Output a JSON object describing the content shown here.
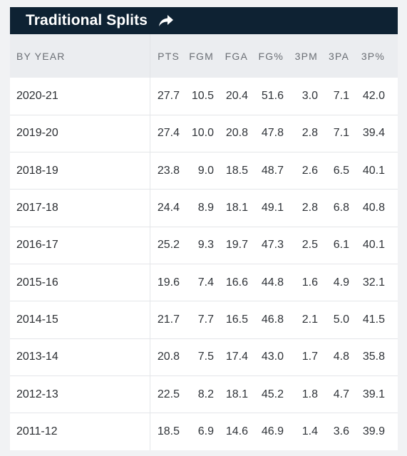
{
  "panel": {
    "title": "Traditional Splits",
    "share_icon": "share-arrow-icon"
  },
  "table": {
    "columns": [
      "BY YEAR",
      "PTS",
      "FGM",
      "FGA",
      "FG%",
      "3PM",
      "3PA",
      "3P%"
    ],
    "rows": [
      [
        "2020-21",
        "27.7",
        "10.5",
        "20.4",
        "51.6",
        "3.0",
        "7.1",
        "42.0"
      ],
      [
        "2019-20",
        "27.4",
        "10.0",
        "20.8",
        "47.8",
        "2.8",
        "7.1",
        "39.4"
      ],
      [
        "2018-19",
        "23.8",
        "9.0",
        "18.5",
        "48.7",
        "2.6",
        "6.5",
        "40.1"
      ],
      [
        "2017-18",
        "24.4",
        "8.9",
        "18.1",
        "49.1",
        "2.8",
        "6.8",
        "40.8"
      ],
      [
        "2016-17",
        "25.2",
        "9.3",
        "19.7",
        "47.3",
        "2.5",
        "6.1",
        "40.1"
      ],
      [
        "2015-16",
        "19.6",
        "7.4",
        "16.6",
        "44.8",
        "1.6",
        "4.9",
        "32.1"
      ],
      [
        "2014-15",
        "21.7",
        "7.7",
        "16.5",
        "46.8",
        "2.1",
        "5.0",
        "41.5"
      ],
      [
        "2013-14",
        "20.8",
        "7.5",
        "17.4",
        "43.0",
        "1.7",
        "4.8",
        "35.8"
      ],
      [
        "2012-13",
        "22.5",
        "8.2",
        "18.1",
        "45.2",
        "1.8",
        "4.7",
        "39.1"
      ],
      [
        "2011-12",
        "18.5",
        "6.9",
        "14.6",
        "46.9",
        "1.4",
        "3.6",
        "39.9"
      ]
    ]
  },
  "colors": {
    "header_bg": "#0e2233",
    "column_header_bg": "#ebedf0",
    "text": "#2f3338"
  }
}
